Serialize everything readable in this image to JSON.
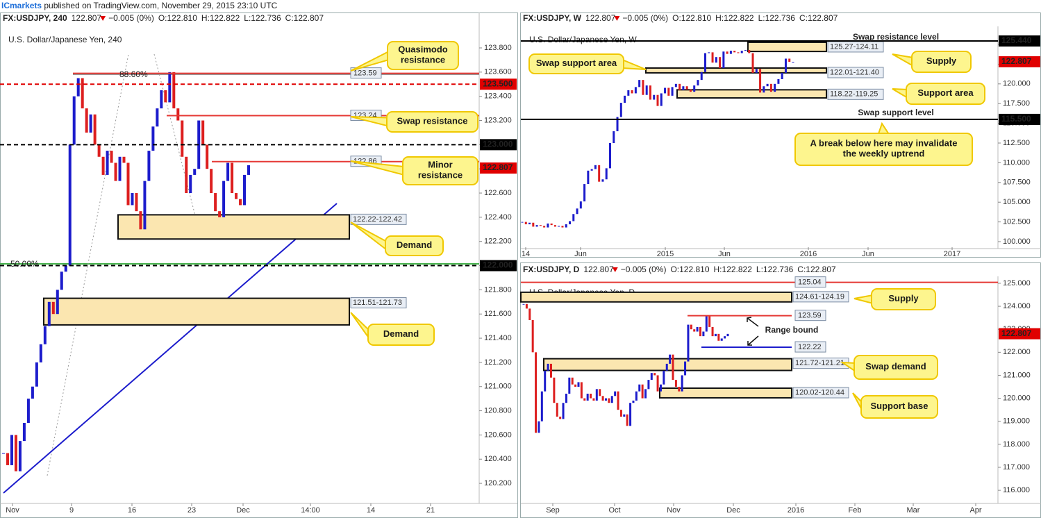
{
  "publisher": {
    "name": "ICmarkets",
    "text": " published on TradingView.com, November 29, 2015 23:10 UTC"
  },
  "chart_data": [
    {
      "type": "candlestick",
      "symbol": "FX:USDJPY, 240",
      "last": "122.807",
      "change": "−0.005 (0%)",
      "open": "O:122.810",
      "high": "H:122.822",
      "low": "L:122.736",
      "close": "C:122.807",
      "title": "U.S. Dollar/Japanese Yen, 240",
      "ylim": [
        120.034,
        123.978
      ],
      "yticks": [
        {
          "value": 120.2,
          "label": "120.200"
        },
        {
          "value": 120.4,
          "label": "120.400"
        },
        {
          "value": 120.6,
          "label": "120.600"
        },
        {
          "value": 120.8,
          "label": "120.800"
        },
        {
          "value": 121,
          "label": "121.000"
        },
        {
          "value": 121.2,
          "label": "121.200"
        },
        {
          "value": 121.4,
          "label": "121.400"
        },
        {
          "value": 121.6,
          "label": "121.600"
        },
        {
          "value": 121.8,
          "label": "121.800"
        },
        {
          "value": 122,
          "label": "122.000"
        },
        {
          "value": 122.2,
          "label": "122.200"
        },
        {
          "value": 122.4,
          "label": "122.400"
        },
        {
          "value": 122.6,
          "label": "122.600"
        },
        {
          "value": 122.8,
          "label": "122.800"
        },
        {
          "value": 123,
          "label": "123.000"
        },
        {
          "value": 123.2,
          "label": "123.200"
        },
        {
          "value": 123.4,
          "label": "123.400"
        },
        {
          "value": 123.6,
          "label": "123.600"
        },
        {
          "value": 123.8,
          "label": "123.800"
        }
      ],
      "xlabels": [
        "Nov",
        "9",
        "16",
        "23",
        "Dec",
        "14:00",
        "14",
        "21"
      ],
      "values": [
        120.45,
        120.35,
        120.6,
        120.3,
        120.55,
        120.7,
        120.9,
        121.0,
        121.2,
        121.35,
        121.5,
        121.7,
        121.6,
        121.8,
        121.95,
        122.0,
        123.0,
        123.4,
        123.55,
        123.3,
        123.1,
        123.25,
        123.0,
        122.9,
        122.75,
        122.95,
        122.85,
        122.7,
        122.9,
        122.85,
        122.5,
        122.6,
        122.45,
        122.3,
        122.7,
        122.95,
        123.15,
        123.3,
        123.45,
        123.35,
        123.6,
        123.3,
        123.2,
        122.9,
        122.6,
        122.75,
        122.8,
        123.2,
        123.0,
        122.8,
        122.6,
        122.45,
        122.4,
        122.7,
        122.85,
        122.6,
        122.55,
        122.5,
        122.75,
        122.83
      ],
      "up_color": "#1c1ccc",
      "down_color": "#dd1f1f",
      "levels": [
        {
          "value": 123.59,
          "label": "123.59",
          "color": "#e53935",
          "dashed": false,
          "tag": "plot"
        },
        {
          "value": 123.5,
          "label": "123.500",
          "color": "#e00000",
          "dashed": true,
          "tag": "axis"
        },
        {
          "value": 123.24,
          "label": "123.24",
          "color": "#e53935",
          "dashed": false,
          "tag": "plot"
        },
        {
          "value": 123.0,
          "label": "123.000",
          "color": "#000000",
          "dashed": true,
          "tag": "axis"
        },
        {
          "value": 122.86,
          "label": "122.86",
          "color": "#e53935",
          "dashed": false,
          "tag": "plot"
        },
        {
          "value": 122.807,
          "label": "122.807",
          "color": "#e00000",
          "dashed": false,
          "tag": "axis"
        },
        {
          "value": 122.0,
          "label": "122.000",
          "color": "#000000",
          "dashed": true,
          "tag": "axis"
        }
      ],
      "zones": [
        {
          "from": 122.22,
          "to": 122.42,
          "label": "122.22-122.42"
        },
        {
          "from": 121.51,
          "to": 121.73,
          "label": "121.51-121.73"
        }
      ],
      "callouts": [
        [
          "Quasimodo",
          "resistance"
        ],
        [
          "Swap resistance"
        ],
        [
          "Minor",
          "resistance"
        ],
        [
          "Demand"
        ],
        [
          "Demand"
        ]
      ],
      "notes": [
        "88.60%",
        "50.00%"
      ]
    },
    {
      "type": "candlestick",
      "symbol": "FX:USDJPY, W",
      "last": "122.807",
      "change": "−0.005 (0%)",
      "open": "O:122.810",
      "high": "H:122.822",
      "low": "L:122.736",
      "close": "C:122.807",
      "title": "U.S. Dollar/Japanese Yen, W",
      "ylim": [
        99.12,
        127.29
      ],
      "yticks": [
        {
          "value": 100,
          "label": "100.000"
        },
        {
          "value": 102.5,
          "label": "102.500"
        },
        {
          "value": 105,
          "label": "105.000"
        },
        {
          "value": 107.5,
          "label": "107.500"
        },
        {
          "value": 110,
          "label": "110.000"
        },
        {
          "value": 112.5,
          "label": "112.500"
        },
        {
          "value": 115,
          "label": "115.000"
        },
        {
          "value": 117.5,
          "label": "117.500"
        },
        {
          "value": 120,
          "label": "120.000"
        },
        {
          "value": 122.5,
          "label": "122.500"
        },
        {
          "value": 125,
          "label": "125.000"
        }
      ],
      "xlabels": [
        "14",
        "Jun",
        "2015",
        "Jun",
        "2016",
        "Jun",
        "2017"
      ],
      "values": [
        102.5,
        102.2,
        102.4,
        101.9,
        102.1,
        102.0,
        101.8,
        102.3,
        102.1,
        101.9,
        102.0,
        101.8,
        102.2,
        102.6,
        103.5,
        104.2,
        105.1,
        107.3,
        109.0,
        109.2,
        109.7,
        107.6,
        107.9,
        109.3,
        112.5,
        114.0,
        115.8,
        117.6,
        118.5,
        119.2,
        118.8,
        119.6,
        120.5,
        118.6,
        119.8,
        118.0,
        118.6,
        117.2,
        118.8,
        119.5,
        118.5,
        119.6,
        120.0,
        119.2,
        119.7,
        119.3,
        119.0,
        119.8,
        120.5,
        121.5,
        123.9,
        124.0,
        122.7,
        123.4,
        122.0,
        124.1,
        123.8,
        124.2,
        124.0,
        123.9,
        124.2,
        124.3,
        123.9,
        121.4,
        121.9,
        118.9,
        119.7,
        120.0,
        119.0,
        120.0,
        120.6,
        121.4,
        123.2,
        122.8,
        122.8
      ],
      "up_color": "#1c1ccc",
      "down_color": "#dd1f1f",
      "levels": [
        {
          "value": 125.44,
          "label": "125.440",
          "color": "#000000",
          "dashed": false,
          "tag": "axis"
        },
        {
          "value": 122.807,
          "label": "122.807",
          "color": "#e00000",
          "dashed": false,
          "tag": "axis"
        },
        {
          "value": 115.5,
          "label": "115.500",
          "color": "#000000",
          "dashed": false,
          "tag": "axis"
        }
      ],
      "zones": [
        {
          "from": 124.11,
          "to": 125.27,
          "label": "125.27-124.11"
        },
        {
          "from": 121.4,
          "to": 122.01,
          "label": "122.01-121.40"
        },
        {
          "from": 118.22,
          "to": 119.25,
          "label": "118.22-119.25"
        }
      ],
      "callouts": [
        [
          "Swap support area"
        ],
        [
          "Supply"
        ],
        [
          "Support area"
        ],
        [
          "A break below here may invalidate",
          "the weekly uptrend"
        ]
      ],
      "notes": [
        "Swap resistance level",
        "Swap support level"
      ]
    },
    {
      "type": "candlestick",
      "symbol": "FX:USDJPY, D",
      "last": "122.807",
      "change": "−0.005 (0%)",
      "open": "O:122.810",
      "high": "H:122.822",
      "low": "L:122.736",
      "close": "C:122.807",
      "title": "U.S. Dollar/Japanese Yen, D",
      "ylim": [
        115.43,
        125.24
      ],
      "yticks": [
        {
          "value": 116,
          "label": "116.000"
        },
        {
          "value": 117,
          "label": "117.000"
        },
        {
          "value": 118,
          "label": "118.000"
        },
        {
          "value": 119,
          "label": "119.000"
        },
        {
          "value": 120,
          "label": "120.000"
        },
        {
          "value": 121,
          "label": "121.000"
        },
        {
          "value": 122,
          "label": "122.000"
        },
        {
          "value": 123,
          "label": "123.000"
        },
        {
          "value": 124,
          "label": "124.000"
        },
        {
          "value": 125,
          "label": "125.000"
        }
      ],
      "xlabels": [
        "Sep",
        "Oct",
        "Nov",
        "Dec",
        "2016",
        "Feb",
        "Mar",
        "Apr"
      ],
      "values": [
        124.1,
        123.9,
        123.4,
        122.0,
        118.5,
        119.0,
        120.3,
        121.2,
        121.5,
        120.9,
        119.8,
        119.2,
        119.1,
        119.8,
        120.2,
        120.9,
        120.6,
        120.5,
        120.7,
        120.0,
        119.9,
        120.2,
        120.0,
        119.9,
        120.4,
        120.1,
        119.9,
        120.0,
        119.8,
        120.1,
        120.3,
        119.5,
        119.2,
        119.3,
        118.8,
        119.8,
        119.9,
        120.3,
        120.6,
        120.0,
        120.4,
        120.8,
        121.1,
        121.0,
        120.3,
        120.6,
        121.2,
        121.5,
        121.9,
        120.8,
        120.5,
        120.3,
        121.0,
        121.6,
        123.2,
        123.0,
        122.9,
        123.1,
        122.7,
        122.9,
        123.6,
        123.1,
        122.7,
        122.8,
        122.5,
        122.6,
        122.7,
        122.8
      ],
      "up_color": "#1c1ccc",
      "down_color": "#dd1f1f",
      "levels": [
        {
          "value": 125.04,
          "label": "125.04",
          "color": "#e53935",
          "dashed": false,
          "tag": "plot"
        },
        {
          "value": 123.59,
          "label": "123.59",
          "color": "#e53935",
          "dashed": false,
          "tag": "plot"
        },
        {
          "value": 122.22,
          "label": "122.22",
          "color": "#1c1ccc",
          "dashed": false,
          "tag": "plot"
        },
        {
          "value": 122.807,
          "label": "122.807",
          "color": "#e00000",
          "dashed": false,
          "tag": "axis"
        }
      ],
      "zones": [
        {
          "from": 124.19,
          "to": 124.61,
          "label": "124.61-124.19"
        },
        {
          "from": 121.21,
          "to": 121.72,
          "label": "121.72-121.21"
        },
        {
          "from": 120.02,
          "to": 120.44,
          "label": "120.02-120.44"
        }
      ],
      "callouts": [
        [
          "Supply"
        ],
        [
          "Swap demand"
        ],
        [
          "Support base"
        ]
      ],
      "notes": [
        "Range bound"
      ]
    }
  ]
}
